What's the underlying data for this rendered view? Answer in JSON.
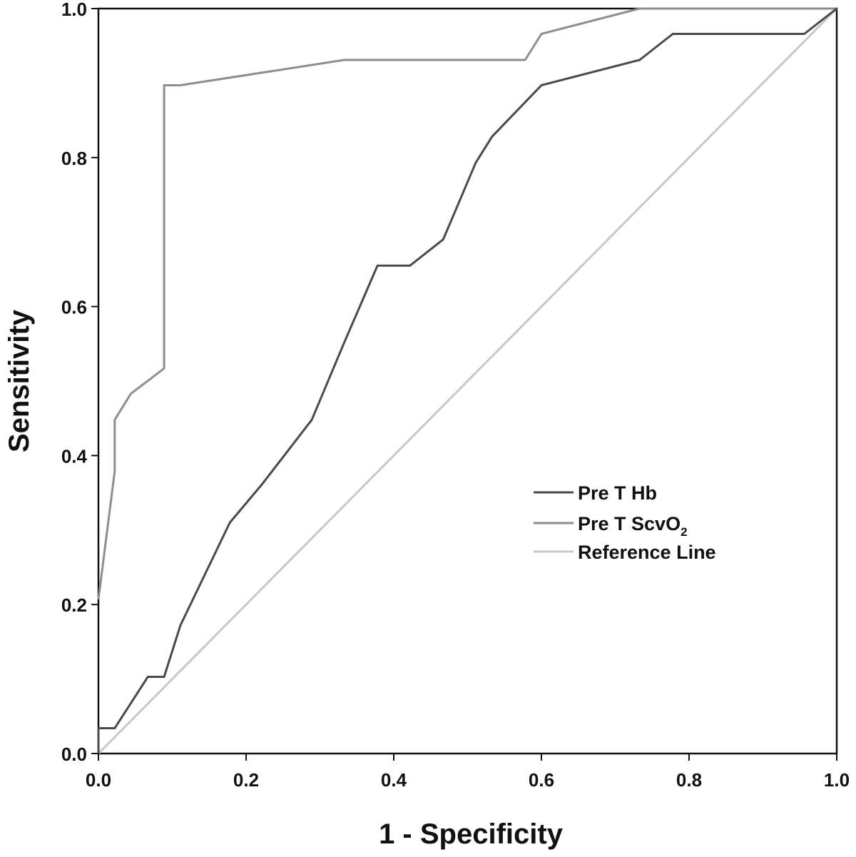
{
  "chart_data": {
    "type": "line",
    "xlabel": "1 - Specificity",
    "ylabel": "Sensitivity",
    "xlim": [
      0,
      1
    ],
    "ylim": [
      0,
      1
    ],
    "x_ticks": [
      "0.0",
      "0.2",
      "0.4",
      "0.6",
      "0.8",
      "1.0"
    ],
    "y_ticks": [
      "0.0",
      "0.2",
      "0.4",
      "0.6",
      "0.8",
      "1.0"
    ],
    "grid": false,
    "legend_position": "center-right",
    "legend": [
      {
        "label": "Pre T Hb",
        "color": "#4a4a4a"
      },
      {
        "label_main": "Pre T ScvO",
        "label_sub": "2",
        "color": "#8e8e8e"
      },
      {
        "label": "Reference Line",
        "color": "#c8c8c8"
      }
    ],
    "series": [
      {
        "name": "Pre T Hb",
        "color": "#4a4a4a",
        "points": [
          [
            0.0,
            0.0
          ],
          [
            0.0,
            0.034
          ],
          [
            0.022,
            0.034
          ],
          [
            0.067,
            0.103
          ],
          [
            0.089,
            0.103
          ],
          [
            0.111,
            0.172
          ],
          [
            0.178,
            0.31
          ],
          [
            0.222,
            0.362
          ],
          [
            0.289,
            0.448
          ],
          [
            0.333,
            0.552
          ],
          [
            0.378,
            0.655
          ],
          [
            0.422,
            0.655
          ],
          [
            0.467,
            0.69
          ],
          [
            0.511,
            0.793
          ],
          [
            0.533,
            0.828
          ],
          [
            0.6,
            0.897
          ],
          [
            0.733,
            0.931
          ],
          [
            0.778,
            0.966
          ],
          [
            0.956,
            0.966
          ],
          [
            1.0,
            1.0
          ]
        ]
      },
      {
        "name": "Pre T ScvO2",
        "color": "#8e8e8e",
        "points": [
          [
            0.0,
            0.207
          ],
          [
            0.022,
            0.379
          ],
          [
            0.022,
            0.448
          ],
          [
            0.044,
            0.483
          ],
          [
            0.089,
            0.517
          ],
          [
            0.089,
            0.897
          ],
          [
            0.111,
            0.897
          ],
          [
            0.333,
            0.931
          ],
          [
            0.578,
            0.931
          ],
          [
            0.6,
            0.966
          ],
          [
            0.733,
            1.0
          ],
          [
            1.0,
            1.0
          ]
        ]
      },
      {
        "name": "Reference Line",
        "color": "#c8c8c8",
        "points": [
          [
            0.0,
            0.0
          ],
          [
            1.0,
            1.0
          ]
        ]
      }
    ]
  }
}
